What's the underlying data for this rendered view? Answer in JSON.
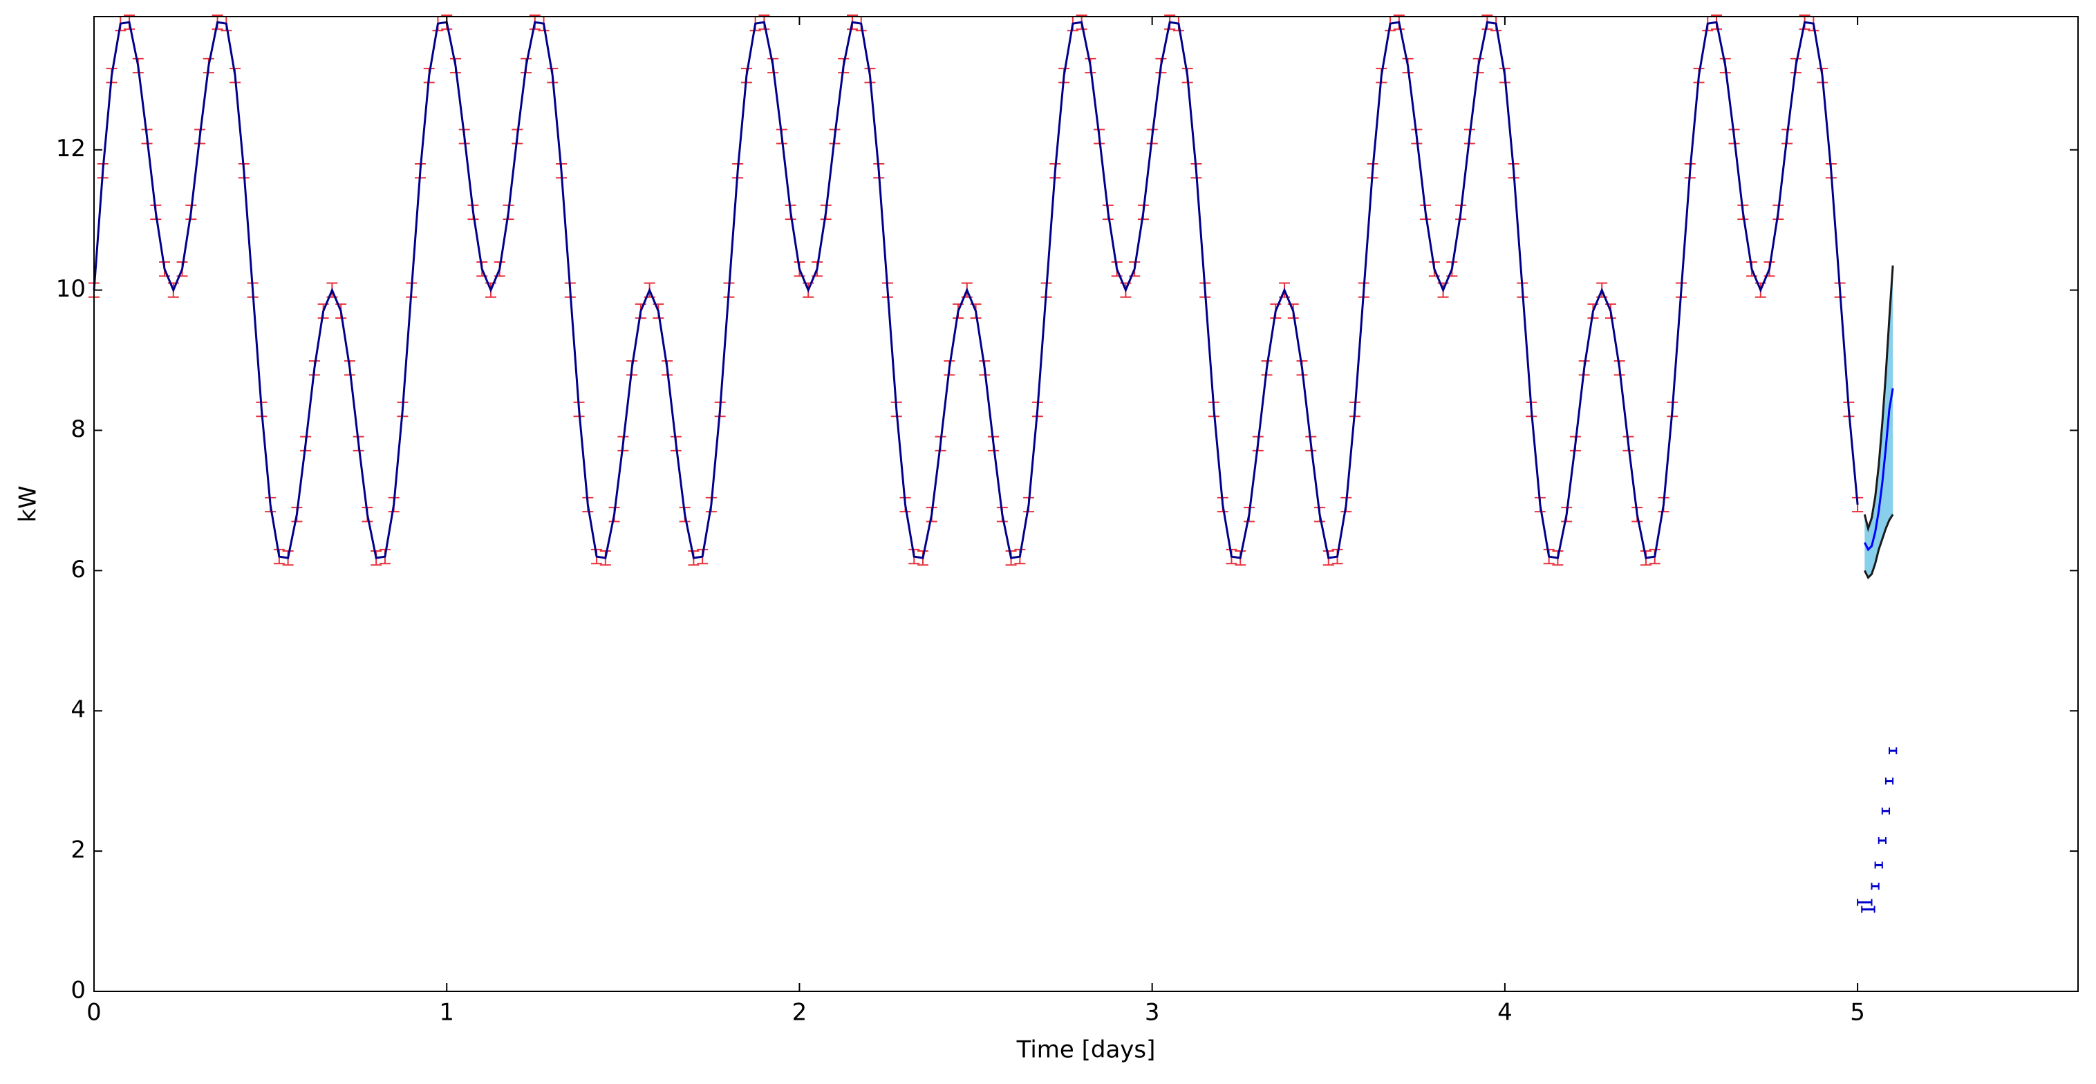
{
  "chart_data": {
    "type": "errorbar_forecast",
    "xlabel": "Time [days]",
    "ylabel": "kW",
    "xlim": [
      0,
      5.625
    ],
    "ylim": [
      0,
      13.9
    ],
    "xticks": [
      0,
      1,
      2,
      3,
      4,
      5
    ],
    "yticks": [
      0,
      2,
      4,
      6,
      8,
      10,
      12
    ],
    "color": "#00008b",
    "err_color": "#e8303a",
    "yerr": 0.1,
    "x": [
      0,
      0.025,
      0.05,
      0.075,
      0.1,
      0.125,
      0.15,
      0.175,
      0.2,
      0.225,
      0.25,
      0.275,
      0.3,
      0.325,
      0.35,
      0.375,
      0.4,
      0.425,
      0.45,
      0.475,
      0.5,
      0.525,
      0.55,
      0.575,
      0.6,
      0.625,
      0.65,
      0.675,
      0.7,
      0.725,
      0.75,
      0.775,
      0.8,
      0.825,
      0.85,
      0.875,
      0.9,
      0.925,
      0.95,
      0.975,
      1,
      1.025,
      1.05,
      1.075,
      1.1,
      1.125,
      1.15,
      1.175,
      1.2,
      1.225,
      1.25,
      1.275,
      1.3,
      1.325,
      1.35,
      1.375,
      1.4,
      1.425,
      1.45,
      1.475,
      1.5,
      1.525,
      1.55,
      1.575,
      1.6,
      1.625,
      1.65,
      1.675,
      1.7,
      1.725,
      1.75,
      1.775,
      1.8,
      1.825,
      1.85,
      1.875,
      1.9,
      1.925,
      1.95,
      1.975,
      2,
      2.025,
      2.05,
      2.075,
      2.1,
      2.125,
      2.15,
      2.175,
      2.2,
      2.225,
      2.25,
      2.275,
      2.3,
      2.325,
      2.35,
      2.375,
      2.4,
      2.425,
      2.45,
      2.475,
      2.5,
      2.525,
      2.55,
      2.575,
      2.6,
      2.625,
      2.65,
      2.675,
      2.7,
      2.725,
      2.75,
      2.775,
      2.8,
      2.825,
      2.85,
      2.875,
      2.9,
      2.925,
      2.95,
      2.975,
      3,
      3.025,
      3.05,
      3.075,
      3.1,
      3.125,
      3.15,
      3.175,
      3.2,
      3.225,
      3.25,
      3.275,
      3.3,
      3.325,
      3.35,
      3.375,
      3.4,
      3.425,
      3.45,
      3.475,
      3.5,
      3.525,
      3.55,
      3.575,
      3.6,
      3.625,
      3.65,
      3.675,
      3.7,
      3.725,
      3.75,
      3.775,
      3.8,
      3.825,
      3.85,
      3.875,
      3.9,
      3.925,
      3.95,
      3.975,
      4,
      4.025,
      4.05,
      4.075,
      4.1,
      4.125,
      4.15,
      4.175,
      4.2,
      4.225,
      4.25,
      4.275,
      4.3,
      4.325,
      4.35,
      4.375,
      4.4,
      4.425,
      4.45,
      4.475,
      4.5,
      4.525,
      4.55,
      4.575,
      4.6,
      4.625,
      4.65,
      4.675,
      4.7,
      4.725,
      4.75,
      4.775,
      4.8,
      4.825,
      4.85,
      4.875,
      4.9,
      4.925,
      4.95,
      4.975,
      5
    ],
    "values": [
      10,
      11.7,
      13.06,
      13.8,
      13.82,
      13.2,
      12.19,
      11.11,
      10.3,
      10,
      10.3,
      11.11,
      12.19,
      13.2,
      13.82,
      13.8,
      13.06,
      11.7,
      10,
      8.3,
      6.94,
      6.2,
      6.18,
      6.8,
      7.81,
      8.89,
      9.7,
      10,
      9.7,
      8.89,
      7.81,
      6.8,
      6.18,
      6.2,
      6.94,
      8.3,
      10,
      11.7,
      13.06,
      13.8,
      13.82,
      13.2,
      12.19,
      11.11,
      10.3,
      10,
      10.3,
      11.11,
      12.19,
      13.2,
      13.82,
      13.8,
      13.06,
      11.7,
      10,
      8.3,
      6.94,
      6.2,
      6.18,
      6.8,
      7.81,
      8.89,
      9.7,
      10,
      9.7,
      8.89,
      7.81,
      6.8,
      6.18,
      6.2,
      6.94,
      8.3,
      10,
      11.7,
      13.06,
      13.8,
      13.82,
      13.2,
      12.19,
      11.11,
      10.3,
      10,
      10.3,
      11.11,
      12.19,
      13.2,
      13.82,
      13.8,
      13.06,
      11.7,
      10,
      8.3,
      6.94,
      6.2,
      6.18,
      6.8,
      7.81,
      8.89,
      9.7,
      10,
      9.7,
      8.89,
      7.81,
      6.8,
      6.18,
      6.2,
      6.94,
      8.3,
      10,
      11.7,
      13.06,
      13.8,
      13.82,
      13.2,
      12.19,
      11.11,
      10.3,
      10,
      10.3,
      11.11,
      12.19,
      13.2,
      13.82,
      13.8,
      13.06,
      11.7,
      10,
      8.3,
      6.94,
      6.2,
      6.18,
      6.8,
      7.81,
      8.89,
      9.7,
      10,
      9.7,
      8.89,
      7.81,
      6.8,
      6.18,
      6.2,
      6.94,
      8.3,
      10,
      11.7,
      13.06,
      13.8,
      13.82,
      13.2,
      12.19,
      11.11,
      10.3,
      10,
      10.3,
      11.11,
      12.19,
      13.2,
      13.82,
      13.8,
      13.06,
      11.7,
      10,
      8.3,
      6.94,
      6.2,
      6.18,
      6.8,
      7.81,
      8.89,
      9.7,
      10,
      9.7,
      8.89,
      7.81,
      6.8,
      6.18,
      6.2,
      6.94,
      8.3,
      10,
      11.7,
      13.06,
      13.8,
      13.82,
      13.2,
      12.19,
      11.11,
      10.3,
      10,
      10.3,
      11.11,
      12.19,
      13.2,
      13.82,
      13.8,
      13.06,
      11.7,
      10,
      8.3,
      6.94
    ],
    "forecast": {
      "x": [
        5.02,
        5.03,
        5.04,
        5.05,
        5.06,
        5.07,
        5.08,
        5.09,
        5.1
      ],
      "mean": [
        6.4,
        6.3,
        6.35,
        6.55,
        6.85,
        7.25,
        7.75,
        8.3,
        8.6
      ],
      "lower": [
        6.0,
        5.9,
        5.95,
        6.1,
        6.3,
        6.45,
        6.6,
        6.72,
        6.8
      ],
      "upper": [
        6.8,
        6.6,
        6.75,
        7.05,
        7.5,
        8.1,
        8.8,
        9.6,
        10.35
      ],
      "color": "#0000ff",
      "fill": "#87cfeb",
      "edge": "#1a1a1a"
    },
    "intervals": {
      "x": [
        5.03,
        5.02,
        5.05,
        5.06,
        5.07,
        5.08,
        5.09,
        5.1
      ],
      "y": [
        1.17,
        1.27,
        1.5,
        1.8,
        2.15,
        2.57,
        3.0,
        3.43
      ],
      "xerr": [
        0.018,
        0.02,
        0.01,
        0.01,
        0.01,
        0.01,
        0.01,
        0.01
      ],
      "color": "#0000cc"
    }
  }
}
